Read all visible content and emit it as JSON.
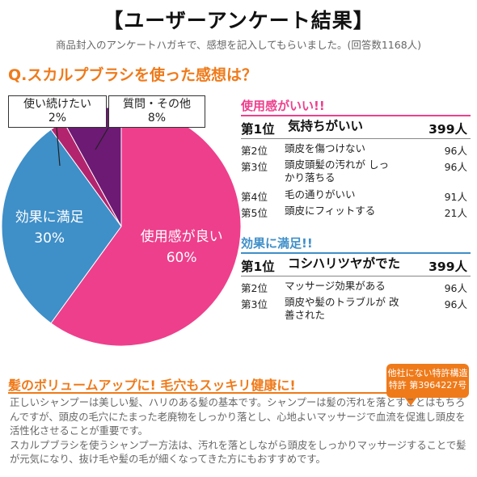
{
  "title": "【ユーザーアンケート結果】",
  "subtitle": "商品封入のアンケートハガキで、感想を記入してもらいました。(回答数1168人)",
  "question": "Q.スカルプブラシを使った感想は？",
  "colors": {
    "pink": "#ee3f8c",
    "blue": "#3f8fc8",
    "purple": "#6d1a74",
    "magenta": "#b3246f",
    "orange": "#ef7a1a"
  },
  "chart_data": {
    "type": "pie",
    "slices": [
      {
        "label": "使用感が良い",
        "value": 60,
        "value_text": "60%",
        "color": "#ee3f8c"
      },
      {
        "label": "効果に満足",
        "value": 30,
        "value_text": "30%",
        "color": "#3f8fc8"
      },
      {
        "label": "使い続けたい",
        "value": 2,
        "value_text": "2%",
        "color": "#b3246f"
      },
      {
        "label": "質問・その他",
        "value": 8,
        "value_text": "8%",
        "color": "#6d1a74"
      }
    ]
  },
  "ranking": {
    "usability": {
      "heading": "使用感がいい!!",
      "items": [
        {
          "rank": "第1位",
          "name": "気持ちがいい",
          "count": "399人"
        },
        {
          "rank": "第2位",
          "name": "頭皮を傷つけない",
          "count": "96人"
        },
        {
          "rank": "第3位",
          "name": "頭皮頭髪の汚れが しっかり落ちる",
          "count": "96人"
        },
        {
          "rank": "第4位",
          "name": "毛の通りがいい",
          "count": "91人"
        },
        {
          "rank": "第5位",
          "name": "頭皮にフィットする",
          "count": "21人"
        }
      ]
    },
    "effect": {
      "heading": "効果に満足!!",
      "items": [
        {
          "rank": "第1位",
          "name": "コシハリツヤがでた",
          "count": "399人"
        },
        {
          "rank": "第2位",
          "name": "マッサージ効果がある",
          "count": "96人"
        },
        {
          "rank": "第3位",
          "name": "頭皮や髪のトラブルが 改善された",
          "count": "96人"
        }
      ]
    }
  },
  "headline": "髪のボリュームアップに! 毛穴もスッキリ健康に!",
  "badge": {
    "line1": "他社にない特許構造",
    "line2": "特許 第3964227号"
  },
  "body": {
    "p1": "正しいシャンプーは美しい髪、ハリのある髪の基本です。シャンプーは髪の汚れを落とすことはもちろんですが、頭皮の毛穴にたまった老廃物をしっかり落とし、心地よいマッサージで血流を促進し頭皮を活性化させることが重要です。",
    "p2": "スカルプブラシを使うシャンプー方法は、汚れを落としながら頭皮をしっかりマッサージすることで髪が元気になり、抜け毛や髪の毛が細くなってきた方にもおすすめです。"
  }
}
